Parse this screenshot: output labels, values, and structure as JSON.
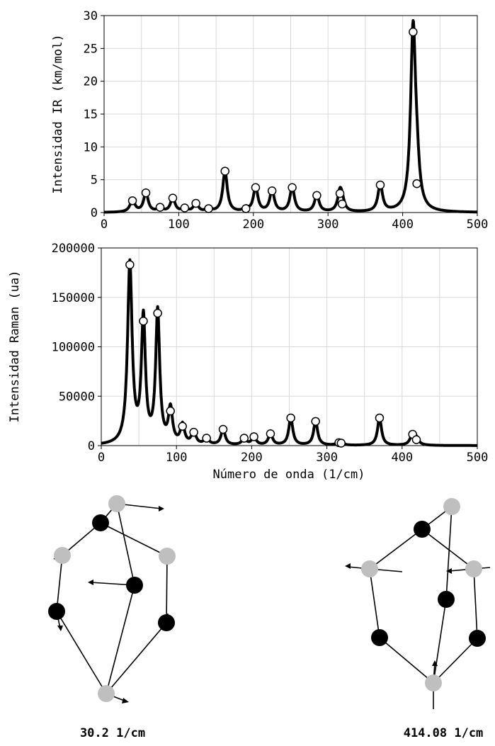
{
  "chart_data": [
    {
      "type": "line",
      "ylabel": "Intensidad IR (km/mol)",
      "xlabel": "",
      "xlim": [
        0,
        500
      ],
      "ylim": [
        0,
        30
      ],
      "xticks": [
        "0",
        "100",
        "200",
        "300",
        "400",
        "500"
      ],
      "yticks": [
        "0",
        "5",
        "10",
        "15",
        "20",
        "25",
        "30"
      ],
      "grid": true,
      "series": [
        {
          "style": "line",
          "x": [
            38,
            56,
            75,
            92,
            108,
            123,
            140,
            162,
            190,
            203,
            225,
            252,
            285,
            316,
            319,
            370,
            414,
            419
          ],
          "y": [
            1.8,
            3.0,
            0.8,
            2.2,
            0.7,
            1.4,
            0.6,
            6.3,
            0.6,
            3.8,
            3.3,
            3.8,
            2.6,
            2.9,
            1.3,
            4.2,
            27.5,
            4.4
          ]
        },
        {
          "style": "markers",
          "x": [
            38,
            56,
            75,
            92,
            108,
            123,
            140,
            162,
            190,
            203,
            225,
            252,
            285,
            316,
            319,
            370,
            414,
            419
          ],
          "y": [
            1.8,
            3.0,
            0.8,
            2.2,
            0.7,
            1.4,
            0.6,
            6.3,
            0.6,
            3.8,
            3.3,
            3.8,
            2.6,
            2.9,
            1.3,
            4.2,
            27.5,
            4.4
          ]
        }
      ]
    },
    {
      "type": "line",
      "ylabel": "Intensidad Raman (ua)",
      "xlabel": "Número de onda (1/cm)",
      "xlim": [
        0,
        500
      ],
      "ylim": [
        0,
        200000
      ],
      "xticks": [
        "0",
        "100",
        "200",
        "300",
        "400",
        "500"
      ],
      "yticks": [
        "0",
        "50000",
        "100000",
        "150000",
        "200000"
      ],
      "grid": true,
      "series": [
        {
          "style": "line",
          "x": [
            38,
            56,
            75,
            92,
            108,
            123,
            140,
            162,
            190,
            203,
            225,
            252,
            285,
            316,
            319,
            370,
            414,
            419
          ],
          "y": [
            183000,
            126000,
            134000,
            35000,
            19500,
            13500,
            7500,
            16500,
            7500,
            9000,
            12000,
            28000,
            24500,
            3000,
            2500,
            28000,
            11500,
            6000
          ]
        },
        {
          "style": "markers",
          "x": [
            38,
            56,
            75,
            92,
            108,
            123,
            140,
            162,
            190,
            203,
            225,
            252,
            285,
            316,
            319,
            370,
            414,
            419
          ],
          "y": [
            183000,
            126000,
            134000,
            35000,
            19500,
            13500,
            7500,
            16500,
            7500,
            9000,
            12000,
            28000,
            24500,
            3000,
            2500,
            28000,
            11500,
            6000
          ]
        }
      ]
    }
  ],
  "structures": [
    {
      "caption": "30.2 1/cm",
      "atoms": [
        "gray",
        "black",
        "gray",
        "gray",
        "black",
        "black",
        "black",
        "gray"
      ]
    },
    {
      "caption": "414.08 1/cm",
      "atoms": [
        "gray",
        "black",
        "gray",
        "gray",
        "black",
        "black",
        "black",
        "gray"
      ]
    }
  ]
}
